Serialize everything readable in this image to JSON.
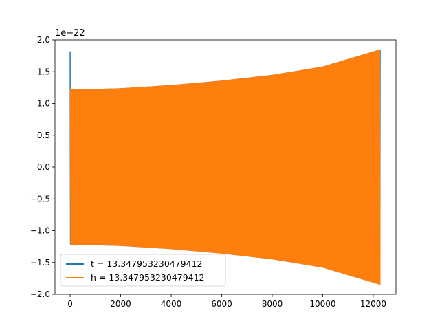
{
  "chart_data": {
    "type": "line",
    "title": "",
    "xlabel": "",
    "ylabel": "",
    "y_scale_label": "1e−22",
    "y_multiplier": 1e-22,
    "xlim": [
      -600,
      12900
    ],
    "ylim": [
      -2.0,
      2.0
    ],
    "x_ticks": [
      0,
      2000,
      4000,
      6000,
      8000,
      10000,
      12000
    ],
    "x_tick_labels": [
      "0",
      "2000",
      "4000",
      "6000",
      "8000",
      "10000",
      "12000"
    ],
    "y_ticks": [
      -2.0,
      -1.5,
      -1.0,
      -0.5,
      0.0,
      0.5,
      1.0,
      1.5,
      2.0
    ],
    "y_tick_labels": [
      "−2.0",
      "−1.5",
      "−1.0",
      "−0.5",
      "0.0",
      "0.5",
      "1.0",
      "1.5",
      "2.0"
    ],
    "grid": false,
    "legend_position": "lower-left",
    "series": [
      {
        "name": "t = 13.347953230479412",
        "color": "#1f77b4",
        "x_range": [
          0,
          12280
        ],
        "envelope_x": [
          0,
          10,
          2000,
          4000,
          6000,
          8000,
          10000,
          12280
        ],
        "envelope_upper": [
          1.82,
          1.22,
          1.24,
          1.29,
          1.36,
          1.45,
          1.58,
          1.85
        ],
        "envelope_lower": [
          -1.1,
          -1.22,
          -1.24,
          -1.29,
          -1.36,
          -1.45,
          -1.58,
          -1.85
        ]
      },
      {
        "name": "h = 13.347953230479412",
        "color": "#ff7f0e",
        "x_range": [
          10,
          12280
        ],
        "envelope_x": [
          10,
          2000,
          4000,
          6000,
          8000,
          10000,
          12280
        ],
        "envelope_upper": [
          1.22,
          1.24,
          1.29,
          1.36,
          1.45,
          1.58,
          1.85
        ],
        "envelope_lower": [
          -1.22,
          -1.24,
          -1.29,
          -1.36,
          -1.45,
          -1.58,
          -1.85
        ]
      }
    ]
  }
}
